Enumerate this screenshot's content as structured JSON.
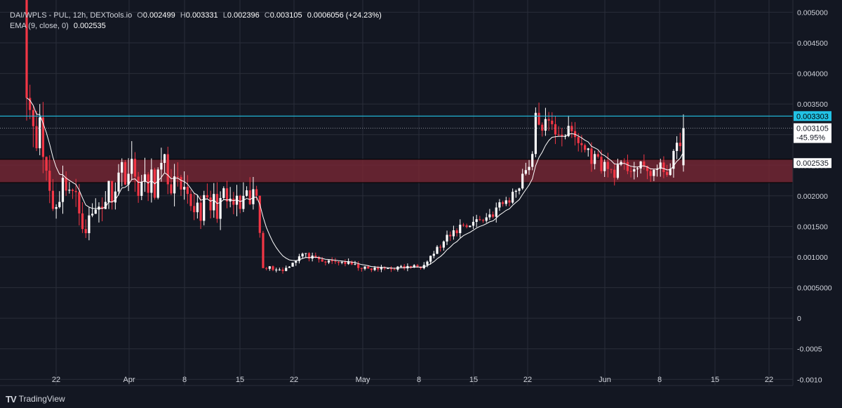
{
  "legend": {
    "symbol": "DAI/WPLS - PUL, 12h, DEXTools.io",
    "open_label": "O",
    "open": "0.002499",
    "high_label": "H",
    "high": "0.003331",
    "low_label": "L",
    "low": "0.002396",
    "close_label": "C",
    "close": "0.003105",
    "change": "0.0006056 (+24.23%)",
    "ema_label": "EMA (9, close, 0)",
    "ema_value": "0.002535"
  },
  "price_tags": {
    "line": "0.003303",
    "current": "0.003105",
    "current_change": "-45.95%",
    "ema": "0.002535"
  },
  "footer": {
    "brand": "TradingView"
  },
  "colors": {
    "background": "#131722",
    "up": "#ffffff",
    "down": "#f23645",
    "ema": "#ffffff",
    "hline": "#22c3e6",
    "zone": "#7a2634",
    "grid": "#2a2e39",
    "text": "#d1d4dc"
  },
  "chart_data": {
    "type": "candlestick",
    "title": "DAI/WPLS - PUL, 12h, DEXTools.io",
    "xlabel": "",
    "ylabel": "",
    "ylim": [
      -0.0011,
      0.0052
    ],
    "y_ticks": [
      "0.005000",
      "0.004500",
      "0.004000",
      "0.003500",
      "0.003000",
      "0.002500",
      "0.002000",
      "0.001500",
      "0.001000",
      "0.0005000",
      "0",
      "-0.0005",
      "-0.0010"
    ],
    "x_ticks": [
      "22",
      "Apr",
      "8",
      "15",
      "22",
      "May",
      "8",
      "15",
      "22",
      "Jun",
      "8",
      "15",
      "22"
    ],
    "horizontal_line": 0.003303,
    "zone": [
      0.002217,
      0.002596
    ],
    "ema_period": 9,
    "anchors": [
      [
        0,
        0.0036
      ],
      [
        4,
        0.003
      ],
      [
        8,
        0.0018
      ],
      [
        12,
        0.0023
      ],
      [
        18,
        0.0015
      ],
      [
        24,
        0.002
      ],
      [
        30,
        0.0025
      ],
      [
        36,
        0.0021
      ],
      [
        42,
        0.0024
      ],
      [
        48,
        0.0019
      ],
      [
        54,
        0.0018
      ],
      [
        60,
        0.0019
      ],
      [
        66,
        0.0018
      ],
      [
        70,
        0.002
      ],
      [
        72,
        0.00085
      ],
      [
        78,
        0.00078
      ],
      [
        84,
        0.00105
      ],
      [
        90,
        0.00092
      ],
      [
        96,
        0.00092
      ],
      [
        104,
        0.0008
      ],
      [
        112,
        0.00082
      ],
      [
        120,
        0.00085
      ],
      [
        126,
        0.00118
      ],
      [
        132,
        0.0015
      ],
      [
        140,
        0.00165
      ],
      [
        148,
        0.002
      ],
      [
        154,
        0.00268
      ],
      [
        155,
        0.00322
      ],
      [
        160,
        0.0031
      ],
      [
        166,
        0.003
      ],
      [
        172,
        0.00265
      ],
      [
        178,
        0.0024
      ],
      [
        184,
        0.00248
      ],
      [
        190,
        0.0024
      ],
      [
        196,
        0.00245
      ],
      [
        200,
        0.0031
      ]
    ]
  }
}
